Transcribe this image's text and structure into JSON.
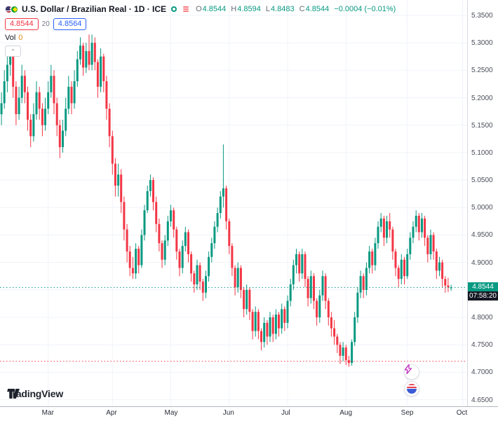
{
  "header": {
    "title": "U.S. Dollar / Brazilian Real · 1D · ICE",
    "ohlc": {
      "o_label": "O",
      "o_value": "4.8544",
      "h_label": "H",
      "h_value": "4.8594",
      "l_label": "L",
      "l_value": "4.8483",
      "c_label": "C",
      "c_value": "4.8544",
      "change": "−0.0004 (−0.01%)"
    },
    "sell_button": "4.8544",
    "spread": "20",
    "buy_button": "4.8564",
    "volume_label": "Vol",
    "volume_value": "0",
    "collapse_glyph": "⌃"
  },
  "colors": {
    "up": "#089981",
    "down": "#F23645",
    "grid": "#F0F3FA",
    "price_line": "#089981",
    "alert_line": "#F23645",
    "price_badge_bg": "#089981",
    "countdown_badge_bg": "#131722"
  },
  "chart_data": {
    "type": "candlestick",
    "title": "U.S. Dollar / Brazilian Real",
    "interval": "1D",
    "exchange": "ICE",
    "ylim": [
      4.638,
      5.378
    ],
    "slots": 160,
    "months": [
      {
        "label": "Mar",
        "slot": 16
      },
      {
        "label": "Apr",
        "slot": 38
      },
      {
        "label": "May",
        "slot": 58
      },
      {
        "label": "Jun",
        "slot": 78
      },
      {
        "label": "Jul",
        "slot": 98
      },
      {
        "label": "Aug",
        "slot": 118
      },
      {
        "label": "Sep",
        "slot": 139
      },
      {
        "label": "Oct",
        "slot": 158
      }
    ],
    "last_price": 4.8544,
    "price_line": 4.8544,
    "alert_line_price": 4.72,
    "grid_prices": [
      5.35,
      5.3,
      5.25,
      5.2,
      5.15,
      5.1,
      5.05,
      5.0,
      4.95,
      4.9,
      4.85,
      4.8,
      4.75,
      4.7,
      4.65
    ],
    "candles": [
      [
        5.17,
        5.21,
        5.15,
        5.19
      ],
      [
        5.19,
        5.25,
        5.18,
        5.23
      ],
      [
        5.23,
        5.28,
        5.21,
        5.26
      ],
      [
        5.26,
        5.295,
        5.24,
        5.28
      ],
      [
        5.28,
        5.29,
        5.2,
        5.22
      ],
      [
        5.22,
        5.23,
        5.15,
        5.17
      ],
      [
        5.17,
        5.22,
        5.16,
        5.2
      ],
      [
        5.2,
        5.26,
        5.19,
        5.24
      ],
      [
        5.24,
        5.25,
        5.19,
        5.21
      ],
      [
        5.21,
        5.22,
        5.14,
        5.16
      ],
      [
        5.16,
        5.17,
        5.11,
        5.13
      ],
      [
        5.13,
        5.19,
        5.12,
        5.17
      ],
      [
        5.17,
        5.23,
        5.16,
        5.21
      ],
      [
        5.21,
        5.22,
        5.16,
        5.18
      ],
      [
        5.18,
        5.19,
        5.13,
        5.15
      ],
      [
        5.15,
        5.2,
        5.14,
        5.18
      ],
      [
        5.18,
        5.23,
        5.17,
        5.21
      ],
      [
        5.21,
        5.26,
        5.2,
        5.24
      ],
      [
        5.24,
        5.25,
        5.17,
        5.19
      ],
      [
        5.19,
        5.2,
        5.13,
        5.15
      ],
      [
        5.15,
        5.16,
        5.09,
        5.11
      ],
      [
        5.11,
        5.16,
        5.1,
        5.14
      ],
      [
        5.14,
        5.2,
        5.13,
        5.18
      ],
      [
        5.18,
        5.24,
        5.17,
        5.22
      ],
      [
        5.22,
        5.23,
        5.17,
        5.19
      ],
      [
        5.19,
        5.25,
        5.18,
        5.23
      ],
      [
        5.23,
        5.285,
        5.22,
        5.27
      ],
      [
        5.27,
        5.31,
        5.26,
        5.295
      ],
      [
        5.295,
        5.3,
        5.24,
        5.255
      ],
      [
        5.255,
        5.3,
        5.245,
        5.285
      ],
      [
        5.285,
        5.315,
        5.25,
        5.26
      ],
      [
        5.26,
        5.315,
        5.25,
        5.3
      ],
      [
        5.3,
        5.31,
        5.25,
        5.265
      ],
      [
        5.265,
        5.27,
        5.2,
        5.22
      ],
      [
        5.22,
        5.29,
        5.21,
        5.275
      ],
      [
        5.275,
        5.28,
        5.21,
        5.23
      ],
      [
        5.23,
        5.24,
        5.16,
        5.18
      ],
      [
        5.18,
        5.19,
        5.11,
        5.13
      ],
      [
        5.13,
        5.14,
        5.06,
        5.08
      ],
      [
        5.08,
        5.09,
        5.02,
        5.04
      ],
      [
        5.04,
        5.08,
        5.02,
        5.06
      ],
      [
        5.06,
        5.07,
        4.99,
        5.01
      ],
      [
        5.01,
        5.02,
        4.94,
        4.96
      ],
      [
        4.96,
        4.97,
        4.9,
        4.92
      ],
      [
        4.92,
        4.93,
        4.875,
        4.89
      ],
      [
        4.89,
        4.91,
        4.87,
        4.88
      ],
      [
        4.88,
        4.935,
        4.87,
        4.925
      ],
      [
        4.925,
        4.93,
        4.88,
        4.895
      ],
      [
        4.895,
        4.96,
        4.89,
        4.95
      ],
      [
        4.95,
        5.005,
        4.94,
        4.995
      ],
      [
        4.995,
        5.04,
        4.99,
        5.03
      ],
      [
        5.03,
        5.06,
        5.02,
        5.05
      ],
      [
        5.05,
        5.055,
        4.995,
        5.01
      ],
      [
        5.01,
        5.02,
        4.955,
        4.97
      ],
      [
        4.97,
        4.98,
        4.92,
        4.935
      ],
      [
        4.935,
        4.94,
        4.89,
        4.905
      ],
      [
        4.905,
        4.95,
        4.895,
        4.94
      ],
      [
        4.94,
        4.985,
        4.93,
        4.975
      ],
      [
        4.975,
        5.005,
        4.965,
        4.995
      ],
      [
        4.995,
        5.0,
        4.945,
        4.96
      ],
      [
        4.96,
        4.965,
        4.905,
        4.92
      ],
      [
        4.92,
        4.925,
        4.875,
        4.89
      ],
      [
        4.89,
        4.94,
        4.88,
        4.93
      ],
      [
        4.93,
        4.965,
        4.92,
        4.955
      ],
      [
        4.955,
        4.96,
        4.9,
        4.915
      ],
      [
        4.915,
        4.92,
        4.865,
        4.88
      ],
      [
        4.88,
        4.885,
        4.845,
        4.86
      ],
      [
        4.86,
        4.905,
        4.85,
        4.895
      ],
      [
        4.895,
        4.9,
        4.85,
        4.865
      ],
      [
        4.865,
        4.87,
        4.83,
        4.845
      ],
      [
        4.845,
        4.885,
        4.835,
        4.875
      ],
      [
        4.875,
        4.92,
        4.865,
        4.91
      ],
      [
        4.91,
        4.945,
        4.9,
        4.935
      ],
      [
        4.935,
        4.975,
        4.925,
        4.965
      ],
      [
        4.965,
        5.0,
        4.955,
        4.99
      ],
      [
        4.99,
        5.03,
        4.98,
        5.02
      ],
      [
        5.02,
        5.115,
        5.0,
        5.035
      ],
      [
        5.035,
        5.04,
        4.96,
        4.975
      ],
      [
        4.975,
        4.98,
        4.915,
        4.93
      ],
      [
        4.93,
        4.935,
        4.875,
        4.89
      ],
      [
        4.89,
        4.895,
        4.84,
        4.855
      ],
      [
        4.855,
        4.9,
        4.845,
        4.89
      ],
      [
        4.89,
        4.895,
        4.835,
        4.85
      ],
      [
        4.85,
        4.855,
        4.8,
        4.815
      ],
      [
        4.815,
        4.86,
        4.805,
        4.85
      ],
      [
        4.85,
        4.855,
        4.795,
        4.81
      ],
      [
        4.81,
        4.815,
        4.76,
        4.775
      ],
      [
        4.775,
        4.82,
        4.765,
        4.81
      ],
      [
        4.81,
        4.815,
        4.76,
        4.775
      ],
      [
        4.775,
        4.78,
        4.74,
        4.755
      ],
      [
        4.755,
        4.8,
        4.745,
        4.79
      ],
      [
        4.79,
        4.795,
        4.75,
        4.765
      ],
      [
        4.765,
        4.81,
        4.755,
        4.8
      ],
      [
        4.8,
        4.805,
        4.755,
        4.77
      ],
      [
        4.77,
        4.815,
        4.76,
        4.805
      ],
      [
        4.805,
        4.81,
        4.765,
        4.78
      ],
      [
        4.78,
        4.825,
        4.77,
        4.815
      ],
      [
        4.815,
        4.82,
        4.775,
        4.79
      ],
      [
        4.79,
        4.84,
        4.78,
        4.83
      ],
      [
        4.83,
        4.87,
        4.82,
        4.86
      ],
      [
        4.86,
        4.905,
        4.85,
        4.895
      ],
      [
        4.895,
        4.925,
        4.88,
        4.915
      ],
      [
        4.915,
        4.92,
        4.865,
        4.88
      ],
      [
        4.88,
        4.925,
        4.87,
        4.915
      ],
      [
        4.915,
        4.92,
        4.855,
        4.87
      ],
      [
        4.87,
        4.875,
        4.82,
        4.835
      ],
      [
        4.835,
        4.885,
        4.825,
        4.875
      ],
      [
        4.875,
        4.88,
        4.815,
        4.83
      ],
      [
        4.83,
        4.835,
        4.785,
        4.8
      ],
      [
        4.8,
        4.85,
        4.79,
        4.84
      ],
      [
        4.84,
        4.885,
        4.83,
        4.875
      ],
      [
        4.875,
        4.88,
        4.815,
        4.83
      ],
      [
        4.83,
        4.835,
        4.785,
        4.8
      ],
      [
        4.8,
        4.81,
        4.765,
        4.78
      ],
      [
        4.78,
        4.795,
        4.75,
        4.765
      ],
      [
        4.765,
        4.77,
        4.735,
        4.75
      ],
      [
        4.75,
        4.755,
        4.715,
        4.73
      ],
      [
        4.73,
        4.755,
        4.72,
        4.745
      ],
      [
        4.745,
        4.75,
        4.713,
        4.722
      ],
      [
        4.722,
        4.73,
        4.71,
        4.717
      ],
      [
        4.717,
        4.76,
        4.712,
        4.755
      ],
      [
        4.755,
        4.81,
        4.748,
        4.8
      ],
      [
        4.8,
        4.855,
        4.79,
        4.845
      ],
      [
        4.845,
        4.885,
        4.835,
        4.875
      ],
      [
        4.875,
        4.88,
        4.835,
        4.85
      ],
      [
        4.85,
        4.9,
        4.84,
        4.89
      ],
      [
        4.89,
        4.93,
        4.88,
        4.92
      ],
      [
        4.92,
        4.925,
        4.88,
        4.895
      ],
      [
        4.895,
        4.945,
        4.885,
        4.935
      ],
      [
        4.935,
        4.975,
        4.925,
        4.965
      ],
      [
        4.965,
        4.99,
        4.955,
        4.98
      ],
      [
        4.98,
        4.985,
        4.93,
        4.945
      ],
      [
        4.945,
        4.985,
        4.935,
        4.975
      ],
      [
        4.975,
        4.99,
        4.945,
        4.96
      ],
      [
        4.96,
        4.965,
        4.905,
        4.92
      ],
      [
        4.92,
        4.925,
        4.875,
        4.89
      ],
      [
        4.89,
        4.895,
        4.855,
        4.87
      ],
      [
        4.87,
        4.915,
        4.86,
        4.905
      ],
      [
        4.905,
        4.91,
        4.86,
        4.875
      ],
      [
        4.875,
        4.925,
        4.87,
        4.915
      ],
      [
        4.915,
        4.955,
        4.905,
        4.945
      ],
      [
        4.945,
        4.975,
        4.935,
        4.965
      ],
      [
        4.965,
        4.995,
        4.955,
        4.985
      ],
      [
        4.985,
        4.99,
        4.94,
        4.955
      ],
      [
        4.955,
        4.99,
        4.945,
        4.98
      ],
      [
        4.98,
        4.985,
        4.93,
        4.945
      ],
      [
        4.945,
        4.95,
        4.9,
        4.915
      ],
      [
        4.915,
        4.96,
        4.905,
        4.95
      ],
      [
        4.95,
        4.955,
        4.905,
        4.92
      ],
      [
        4.92,
        4.925,
        4.87,
        4.885
      ],
      [
        4.885,
        4.91,
        4.875,
        4.9
      ],
      [
        4.9,
        4.905,
        4.855,
        4.87
      ],
      [
        4.87,
        4.875,
        4.845,
        4.858
      ],
      [
        4.858,
        4.872,
        4.846,
        4.8548
      ],
      [
        4.8544,
        4.8594,
        4.8483,
        4.8544
      ]
    ]
  },
  "price_axis": {
    "labels": [
      {
        "price": 5.35,
        "text": "5.3500"
      },
      {
        "price": 5.3,
        "text": "5.3000"
      },
      {
        "price": 5.25,
        "text": "5.2500"
      },
      {
        "price": 5.2,
        "text": "5.2000"
      },
      {
        "price": 5.15,
        "text": "5.1500"
      },
      {
        "price": 5.1,
        "text": "5.1000"
      },
      {
        "price": 5.05,
        "text": "5.0500"
      },
      {
        "price": 5.0,
        "text": "5.0000"
      },
      {
        "price": 4.95,
        "text": "4.9500"
      },
      {
        "price": 4.9,
        "text": "4.9000"
      },
      {
        "price": 4.8,
        "text": "4.8000"
      },
      {
        "price": 4.75,
        "text": "4.7500"
      },
      {
        "price": 4.7,
        "text": "4.7000"
      },
      {
        "price": 4.65,
        "text": "4.6500"
      }
    ],
    "price_badge": "4.8544",
    "countdown": "07:58:20"
  },
  "footer": {
    "logo_text": "TradingView"
  }
}
